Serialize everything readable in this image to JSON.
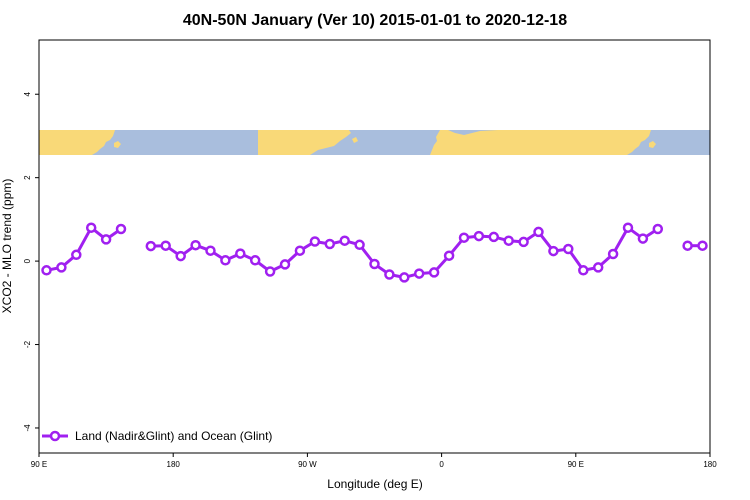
{
  "chart_data": {
    "type": "line",
    "title": "40N-50N January (Ver 10)   2015-01-01 to 2020-12-18",
    "xlabel": "Longitude (deg E)",
    "ylabel": "XCO2 - MLO trend (ppm)",
    "xlim": [
      90,
      540
    ],
    "ylim": [
      -4.6,
      5.3
    ],
    "x_ticks": [
      {
        "value": 90,
        "label": "90 E"
      },
      {
        "value": 180,
        "label": "180"
      },
      {
        "value": 270,
        "label": "90 W"
      },
      {
        "value": 360,
        "label": "0"
      },
      {
        "value": 450,
        "label": "90 E"
      },
      {
        "value": 540,
        "label": "180"
      }
    ],
    "y_ticks": [
      {
        "value": -4,
        "label": "-4"
      },
      {
        "value": -2,
        "label": "-2"
      },
      {
        "value": 0,
        "label": "0"
      },
      {
        "value": 2,
        "label": "2"
      },
      {
        "value": 4,
        "label": "4"
      }
    ],
    "legend_position": "bottom-left",
    "map_strip": {
      "ymin": 2.5,
      "ymax": 3.1,
      "land_color": "#f9d978",
      "ocean_color": "#a9bedd"
    },
    "series": [
      {
        "name": "Land (Nadir&Glint) and Ocean (Glint)",
        "color": "#a020f0",
        "segments": [
          {
            "x": [
              95,
              105,
              115,
              125,
              135,
              145
            ],
            "y": [
              -0.22,
              -0.15,
              0.15,
              0.8,
              0.52,
              0.77
            ]
          },
          {
            "x": [
              165,
              175,
              185,
              195,
              205,
              215,
              225,
              235,
              245,
              255,
              265,
              275,
              285,
              295,
              305,
              315,
              325,
              335,
              345,
              355,
              365,
              375,
              385,
              395,
              405,
              415,
              425,
              435,
              445,
              455,
              465,
              475,
              485,
              495,
              505
            ],
            "y": [
              0.36,
              0.37,
              0.12,
              0.38,
              0.25,
              0.02,
              0.18,
              0.02,
              -0.25,
              -0.08,
              0.25,
              0.47,
              0.41,
              0.49,
              0.39,
              -0.07,
              -0.32,
              -0.39,
              -0.3,
              -0.27,
              0.13,
              0.56,
              0.6,
              0.58,
              0.49,
              0.46,
              0.7,
              0.24,
              0.29,
              -0.22,
              -0.15,
              0.17,
              0.8,
              0.54,
              0.77
            ]
          },
          {
            "x": [
              525,
              535
            ],
            "y": [
              0.37,
              0.37
            ]
          }
        ]
      }
    ]
  }
}
